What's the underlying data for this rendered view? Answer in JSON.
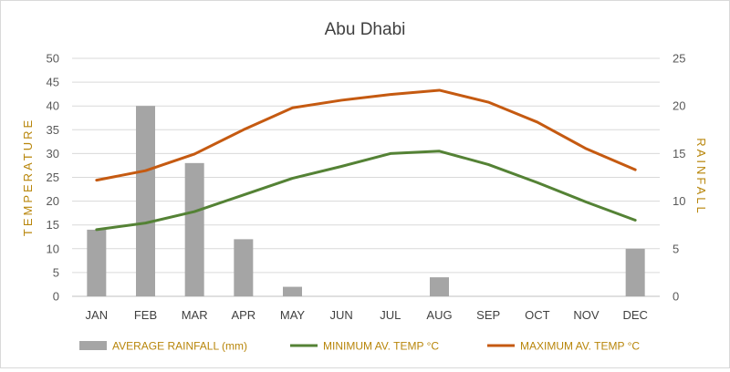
{
  "chart_data": {
    "type": "bar+line",
    "title": "Abu Dhabi",
    "categories": [
      "JAN",
      "FEB",
      "MAR",
      "APR",
      "MAY",
      "JUN",
      "JUL",
      "AUG",
      "SEP",
      "OCT",
      "NOV",
      "DEC"
    ],
    "ylabel_left": "TEMPERATURE",
    "ylabel_right": "RAINFALL",
    "ylim_left": [
      0,
      50
    ],
    "yticks_left": [
      0,
      5,
      10,
      15,
      20,
      25,
      30,
      35,
      40,
      45,
      50
    ],
    "ylim_right": [
      0,
      25
    ],
    "yticks_right": [
      0,
      5,
      10,
      15,
      20,
      25
    ],
    "grid": true,
    "legend_position": "bottom",
    "series": [
      {
        "name": "AVERAGE RAINFALL (mm)",
        "type": "bar",
        "axis": "right",
        "color": "#a5a5a5",
        "values": [
          7,
          20,
          14,
          6,
          1,
          0,
          0,
          2,
          0,
          0,
          0,
          5
        ]
      },
      {
        "name": "MINIMUM AV. TEMP °C",
        "type": "line",
        "axis": "left",
        "color": "#548235",
        "values": [
          14,
          15.4,
          17.8,
          21.3,
          24.8,
          27.3,
          30,
          30.5,
          27.7,
          23.9,
          19.8,
          16
        ]
      },
      {
        "name": "MAXIMUM AV. TEMP °C",
        "type": "line",
        "axis": "left",
        "color": "#c55a11",
        "values": [
          24.4,
          26.4,
          29.9,
          35,
          39.6,
          41.2,
          42.4,
          43.3,
          40.8,
          36.6,
          31,
          26.6
        ]
      }
    ]
  }
}
